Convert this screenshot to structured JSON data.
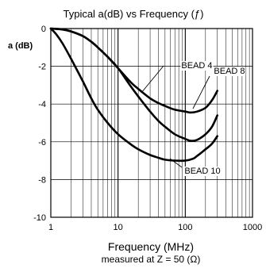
{
  "chart_data": {
    "type": "line",
    "title": "Typical a(dB) vs Frequency (ƒ)",
    "ylabel": "a (dB)",
    "xlabel": "Frequency (MHz)",
    "note": "measured at Z = 50 (Ω)",
    "x_scale": "log",
    "xlim": [
      1,
      1000
    ],
    "ylim": [
      -10,
      0
    ],
    "x_ticks": [
      "1",
      "10",
      "100",
      "1000"
    ],
    "y_ticks": [
      "0",
      "-2",
      "-4",
      "-6",
      "-8",
      "-10"
    ],
    "grid": true,
    "series": [
      {
        "name": "BEAD 4",
        "x": [
          1,
          1.5,
          2,
          3,
          4,
          5,
          7,
          10,
          15,
          20,
          30,
          40,
          50,
          70,
          100,
          120,
          150,
          200,
          250,
          300
        ],
        "y": [
          0,
          -0.05,
          -0.15,
          -0.4,
          -0.7,
          -1.0,
          -1.5,
          -2.1,
          -2.8,
          -3.2,
          -3.7,
          -3.95,
          -4.1,
          -4.3,
          -4.4,
          -4.45,
          -4.4,
          -4.2,
          -3.8,
          -3.3
        ]
      },
      {
        "name": "BEAD 8",
        "x": [
          1,
          1.5,
          2,
          3,
          4,
          5,
          7,
          10,
          15,
          20,
          30,
          40,
          50,
          70,
          100,
          120,
          150,
          200,
          250,
          300
        ],
        "y": [
          0,
          -0.05,
          -0.15,
          -0.4,
          -0.7,
          -1.0,
          -1.5,
          -2.1,
          -3.0,
          -3.6,
          -4.4,
          -4.9,
          -5.2,
          -5.6,
          -5.85,
          -5.95,
          -5.9,
          -5.6,
          -5.2,
          -4.6
        ]
      },
      {
        "name": "BEAD 10",
        "x": [
          1,
          1.2,
          1.5,
          2,
          3,
          4,
          5,
          7,
          10,
          15,
          20,
          30,
          40,
          50,
          70,
          100,
          130,
          150,
          200,
          250,
          300
        ],
        "y": [
          0,
          -0.3,
          -0.8,
          -1.6,
          -2.8,
          -3.7,
          -4.3,
          -5.0,
          -5.6,
          -6.1,
          -6.4,
          -6.7,
          -6.85,
          -6.95,
          -7.0,
          -7.0,
          -6.9,
          -6.75,
          -6.4,
          -6.1,
          -5.7
        ]
      }
    ]
  }
}
